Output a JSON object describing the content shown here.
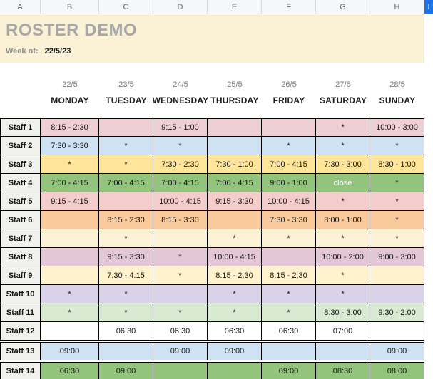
{
  "colors": {
    "selected_column_bg": "#1a73e8",
    "header_band_bg": "#fbf2d5",
    "grid_border": "#000000",
    "label_column_bg": "#f0f0ec"
  },
  "spreadsheet": {
    "column_headers": [
      "A",
      "B",
      "C",
      "D",
      "E",
      "F",
      "G",
      "H",
      "I"
    ],
    "selected_column": "I"
  },
  "header": {
    "title": "ROSTER DEMO",
    "week_of_label": "Week of:",
    "week_of_value": "22/5/23"
  },
  "roster": {
    "dates": [
      "22/5",
      "23/5",
      "24/5",
      "25/5",
      "26/5",
      "27/5",
      "28/5"
    ],
    "days": [
      "MONDAY",
      "TUESDAY",
      "WEDNESDAY",
      "THURSDAY",
      "FRIDAY",
      "SATURDAY",
      "SUNDAY"
    ],
    "rows": [
      {
        "name": "Staff 1",
        "color": "#efcfd6",
        "cells": [
          "8:15 - 2:30",
          "",
          "9:15 - 1:00",
          "",
          "",
          "*",
          "10:00 - 3:00"
        ]
      },
      {
        "name": "Staff 2",
        "color": "#cfe2f3",
        "cells": [
          "7:30 - 3:30",
          "*",
          "*",
          "",
          "*",
          "*",
          "*"
        ]
      },
      {
        "name": "Staff 3",
        "color": "#ffe599",
        "cells": [
          "*",
          "*",
          "7:30 - 2:30",
          "7:30 - 1:00",
          "7:00 - 4:15",
          "7:30 - 3:00",
          "8:30 - 1:00"
        ]
      },
      {
        "name": "Staff 4",
        "color": "#93c47d",
        "cells": [
          "7:00 - 4:15",
          "7:00 - 4:15",
          "7:00 - 4:15",
          "7:00 - 4:15",
          "9:00 - 1:00",
          "close",
          "*"
        ],
        "light_text_cells": [
          5
        ]
      },
      {
        "name": "Staff 5",
        "color": "#f4cccc",
        "cells": [
          "9:15 - 4:15",
          "",
          "10:00 - 4:15",
          "9:15 - 3:30",
          "10:00 - 4:15",
          "*",
          "*"
        ]
      },
      {
        "name": "Staff 6",
        "color": "#f9cb9c",
        "cells": [
          "",
          "8:15 - 2:30",
          "8:15 - 3:30",
          "",
          "7:30 - 3:30",
          "8:00 - 1:00",
          "*"
        ]
      },
      {
        "name": "Staff 7",
        "color": "#fcf3d6",
        "cells": [
          "",
          "*",
          "",
          "*",
          "*",
          "*",
          "*"
        ]
      },
      {
        "name": "Staff 8",
        "color": "#e3c7d6",
        "cells": [
          "",
          "9:15 - 3:30",
          "*",
          "10:00 - 4:15",
          "",
          "10:00 - 2:00",
          "9:00 - 3:00"
        ]
      },
      {
        "name": "Staff 9",
        "color": "#fff2cc",
        "cells": [
          "",
          "7:30 - 4:15",
          "*",
          "8:15 - 2:30",
          "8:15 - 2:30",
          "*",
          ""
        ]
      },
      {
        "name": "Staff 10",
        "color": "#d9d2e9",
        "cells": [
          "*",
          "*",
          "",
          "*",
          "*",
          "*",
          ""
        ]
      },
      {
        "name": "Staff 11",
        "color": "#d9ead3",
        "cells": [
          "*",
          "*",
          "*",
          "*",
          "*",
          "8:30 - 3:00",
          "9:30 - 2:00"
        ]
      },
      {
        "name": "Staff 12",
        "color": "#ffffff",
        "cells": [
          "",
          "06:30",
          "06:30",
          "06:30",
          "06:30",
          "07:00",
          ""
        ]
      },
      {
        "name": "Staff 13",
        "color": "#cfe2f3",
        "cells": [
          "09:00",
          "",
          "09:00",
          "09:00",
          "",
          "",
          "09:00"
        ],
        "gap_before": true
      },
      {
        "name": "Staff 14",
        "color": "#93c47d",
        "cells": [
          "06:30",
          "09:00",
          "",
          "",
          "09:00",
          "08:30",
          "08:00"
        ],
        "gap_before": true
      }
    ]
  }
}
